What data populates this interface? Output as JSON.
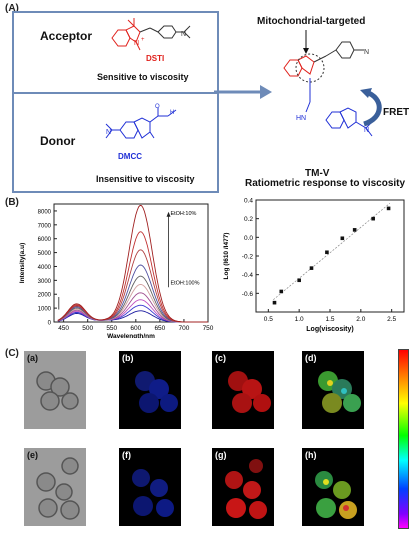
{
  "panelA": {
    "label": "(A)",
    "acceptor": {
      "role": "Acceptor",
      "name": "DSTI",
      "property": "Sensitive to viscosity"
    },
    "donor": {
      "role": "Donor",
      "name": "DMCC",
      "property": "Insensitive to viscosity"
    },
    "targeting": "Mitochondrial-targeted",
    "fret": "FRET",
    "probe": "TM-V"
  },
  "panelB": {
    "label": "(B)",
    "right_title": "Ratiometric response to viscosity",
    "legend_top": "EtOH:10%",
    "legend_bottom": "EtOH:100%"
  },
  "panelC": {
    "label": "(C)",
    "subpanels": [
      "(a)",
      "(b)",
      "(c)",
      "(d)",
      "(e)",
      "(f)",
      "(g)",
      "(h)"
    ]
  },
  "chart_data": [
    {
      "type": "line",
      "xlabel": "Wavelength/nm",
      "ylabel": "Intensity(a.u)",
      "xlim": [
        430,
        750
      ],
      "ylim": [
        0,
        8500
      ],
      "x_ticks": [
        450,
        500,
        550,
        600,
        650,
        700,
        750
      ],
      "y_ticks": [
        0,
        1000,
        2000,
        3000,
        4000,
        5000,
        6000,
        7000,
        8000
      ],
      "series": [
        {
          "color": "#1a1aa0",
          "peak477": 600,
          "peak610": 800
        },
        {
          "color": "#3b3bd0",
          "peak477": 680,
          "peak610": 1200
        },
        {
          "color": "#c050c0",
          "peak477": 760,
          "peak610": 1600
        },
        {
          "color": "#a05090",
          "peak477": 840,
          "peak610": 2100
        },
        {
          "color": "#d0a0a0",
          "peak477": 920,
          "peak610": 2700
        },
        {
          "color": "#606060",
          "peak477": 1000,
          "peak610": 3300
        },
        {
          "color": "#5050a0",
          "peak477": 1080,
          "peak610": 4100
        },
        {
          "color": "#b04040",
          "peak477": 1150,
          "peak610": 5200
        },
        {
          "color": "#c03030",
          "peak477": 1220,
          "peak610": 6500
        },
        {
          "color": "#a02020",
          "peak477": 1300,
          "peak610": 8400
        }
      ]
    },
    {
      "type": "scatter",
      "title": "Ratiometric response to viscosity",
      "xlabel": "Log(viscosity)",
      "ylabel": "Log (I610 /I477)",
      "xlim": [
        0.3,
        2.7
      ],
      "ylim": [
        -0.8,
        0.4
      ],
      "x_ticks": [
        0.5,
        1.0,
        1.5,
        2.0,
        2.5
      ],
      "y_ticks": [
        -0.6,
        -0.4,
        -0.2,
        0.0,
        0.2,
        0.4
      ],
      "x": [
        0.6,
        0.71,
        1.0,
        1.2,
        1.45,
        1.7,
        1.9,
        2.2,
        2.45
      ],
      "y": [
        -0.7,
        -0.58,
        -0.46,
        -0.33,
        -0.16,
        -0.01,
        0.08,
        0.2,
        0.31
      ],
      "fit": true
    }
  ]
}
